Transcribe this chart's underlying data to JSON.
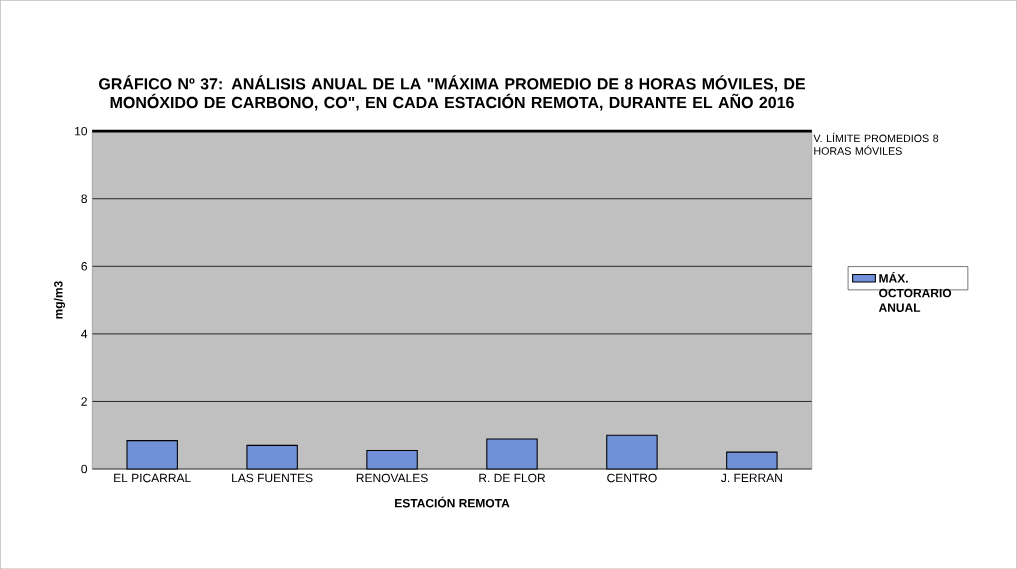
{
  "chart_data": {
    "type": "bar",
    "title": "GRÁFICO Nº 37: ANÁLISIS ANUAL DE LA \"MÁXIMA PROMEDIO DE 8 HORAS MÓVILES, DE MONÓXIDO DE CARBONO, CO\", EN CADA ESTACIÓN REMOTA, DURANTE EL AÑO 2016",
    "xlabel": "ESTACIÓN REMOTA",
    "ylabel": "mg/m3",
    "categories": [
      "EL PICARRAL",
      "LAS FUENTES",
      "RENOVALES",
      "R. DE FLOR",
      "CENTRO",
      "J. FERRAN"
    ],
    "series": [
      {
        "name": "MÁX. OCTORARIO ANUAL",
        "color": "#7090d8",
        "values": [
          0.84,
          0.7,
          0.55,
          0.89,
          1.0,
          0.5
        ]
      }
    ],
    "ylim": [
      0,
      10
    ],
    "yticks": [
      0,
      2,
      4,
      6,
      8,
      10
    ],
    "grid": "y",
    "legend": "right",
    "ref_lines": [
      {
        "axis": "y",
        "value": 10,
        "label": "V. LÍMITE PROMEDIOS 8 HORAS MÓVILES",
        "color": "#000000"
      }
    ]
  }
}
